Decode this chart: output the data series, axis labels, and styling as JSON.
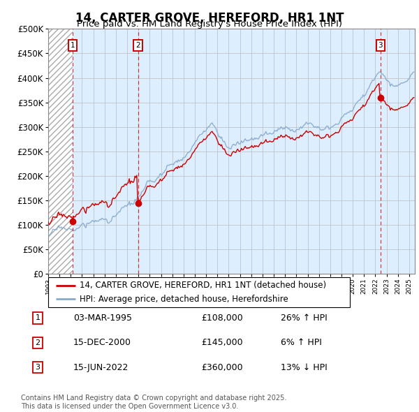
{
  "title": "14, CARTER GROVE, HEREFORD, HR1 1NT",
  "subtitle": "Price paid vs. HM Land Registry's House Price Index (HPI)",
  "ylim": [
    0,
    500000
  ],
  "yticks": [
    0,
    50000,
    100000,
    150000,
    200000,
    250000,
    300000,
    350000,
    400000,
    450000,
    500000
  ],
  "ytick_labels": [
    "£0",
    "£50K",
    "£100K",
    "£150K",
    "£200K",
    "£250K",
    "£300K",
    "£350K",
    "£400K",
    "£450K",
    "£500K"
  ],
  "xlim_start": 1993.0,
  "xlim_end": 2025.5,
  "sales": [
    {
      "num": 1,
      "date": "03-MAR-1995",
      "date_float": 1995.17,
      "price": 108000,
      "pct": "26%",
      "dir": "↑"
    },
    {
      "num": 2,
      "date": "15-DEC-2000",
      "date_float": 2000.96,
      "price": 145000,
      "pct": "6%",
      "dir": "↑"
    },
    {
      "num": 3,
      "date": "15-JUN-2022",
      "date_float": 2022.45,
      "price": 360000,
      "pct": "13%",
      "dir": "↓"
    }
  ],
  "red_line_color": "#cc0000",
  "blue_line_color": "#88aacc",
  "bg_plot_color": "#ddeeff",
  "grid_color": "#bbbbbb",
  "legend_label_red": "14, CARTER GROVE, HEREFORD, HR1 1NT (detached house)",
  "legend_label_blue": "HPI: Average price, detached house, Herefordshire",
  "footer": "Contains HM Land Registry data © Crown copyright and database right 2025.\nThis data is licensed under the Open Government Licence v3.0.",
  "title_fontsize": 12,
  "subtitle_fontsize": 9.5,
  "tick_fontsize": 8.5,
  "legend_fontsize": 8.5,
  "table_fontsize": 9,
  "footer_fontsize": 7
}
